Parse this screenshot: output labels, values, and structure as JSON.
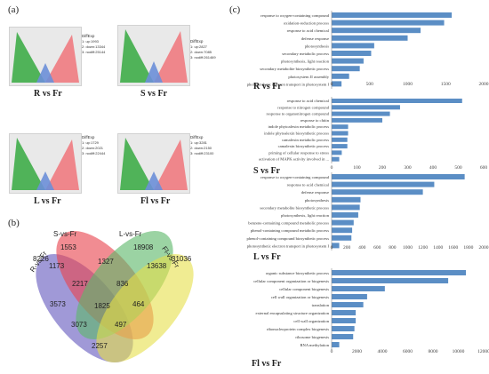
{
  "panels": {
    "a": "(a)",
    "b": "(b)",
    "c": "(c)"
  },
  "volcano": [
    {
      "title": "R vs Fr",
      "legend_title": "DiffExp",
      "legend": [
        "1: up:1993",
        "2: down:13344",
        "3: nodiff:25144"
      ]
    },
    {
      "title": "S vs Fr",
      "legend_title": "DiffExp",
      "legend": [
        "1: up:2827",
        "2: down:7085",
        "3: nodiff:261469"
      ]
    },
    {
      "title": "L vs Fr",
      "legend_title": "DiffExp",
      "legend": [
        "1: up:1729",
        "2: down:2021",
        "3: nodiff:22444"
      ]
    },
    {
      "title": "Fl vs Fr",
      "legend_title": "DiffExp",
      "legend": [
        "1: up:3281",
        "2: down:2150",
        "3: nodiff:23100"
      ]
    }
  ],
  "venn": {
    "sets": [
      "R-vs-Fr",
      "S-vs-Fr",
      "L-vs-Fr",
      "Fl-vs-Fr"
    ],
    "colors": [
      "#7b72c8",
      "#e8454f",
      "#5db86a",
      "#e6e04a"
    ],
    "counts": {
      "R_only": "8226",
      "S_only": "1553",
      "L_only": "18908",
      "Fl_only": "31036",
      "RS": "1173",
      "SL": "1327",
      "LF": "13638",
      "RF": "2257",
      "RSL": "2217",
      "SLF": "836",
      "RSF": "3573",
      "RLF": "497",
      "RL": "3073",
      "SF": "464",
      "all": "1825"
    }
  },
  "chart_data": [
    {
      "type": "bar",
      "orientation": "horizontal",
      "title": "R vs Fr",
      "categories": [
        "response to oxygen-containing compound",
        "oxidation-reduction process",
        "response to acid chemical",
        "defense response",
        "photosynthesis",
        "secondary metabolic process",
        "photosynthesis, light reaction",
        "secondary metabolite biosynthetic process",
        "photosystem II assembly",
        "photosynthetic electron transport in photosystem I"
      ],
      "values": [
        1580,
        1480,
        1170,
        1000,
        560,
        520,
        420,
        370,
        230,
        130
      ],
      "xlim": [
        0,
        2000
      ],
      "xticks": [
        "0",
        "500",
        "1000",
        "1500",
        "2000"
      ]
    },
    {
      "type": "bar",
      "orientation": "horizontal",
      "title": "S vs Fr",
      "categories": [
        "response to acid chemical",
        "response to nitrogen compound",
        "response to organonitrogen compound",
        "response to chitin",
        "indole phytoalexin metabolic process",
        "indole phytoalexin biosynthetic process",
        "camalexin metabolic process",
        "camalexin biosynthetic process",
        "priming of cellular response to stress",
        "activation of MAPK activity involved in ..."
      ],
      "values": [
        515,
        270,
        230,
        200,
        65,
        65,
        62,
        62,
        40,
        30
      ],
      "xlim": [
        0,
        600
      ],
      "xticks": [
        "0",
        "100",
        "200",
        "300",
        "400",
        "500",
        "600"
      ]
    },
    {
      "type": "bar",
      "orientation": "horizontal",
      "title": "L vs Fr",
      "categories": [
        "response to oxygen-containing compound",
        "response to acid chemical",
        "defense response",
        "photosynthesis",
        "secondary metabolite biosynthetic process",
        "photosynthesis, light reaction",
        "benzene-containing compound metabolic process",
        "phenol-containing compound metabolic process",
        "phenol-containing compound biosynthetic process",
        "photosynthetic electron transport in photosystem I"
      ],
      "values": [
        1750,
        1350,
        1200,
        380,
        370,
        350,
        290,
        270,
        260,
        100
      ],
      "xlim": [
        0,
        2000
      ],
      "xticks": [
        "0",
        "200",
        "400",
        "600",
        "800",
        "1000",
        "1200",
        "1400",
        "1600",
        "1800",
        "2000"
      ]
    },
    {
      "type": "bar",
      "orientation": "horizontal",
      "title": "Fl vs Fr",
      "categories": [
        "organic substance biosynthetic process",
        "cellular component organization or biogenesis",
        "cellular component biogenesis",
        "cell wall organization or biogenesis",
        "translation",
        "external encapsulating structure organization",
        "cell wall organization",
        "ribonucleoprotein complex biogenesis",
        "ribosome biogenesis",
        "RNA methylation"
      ],
      "values": [
        10600,
        9200,
        4200,
        2800,
        2500,
        1900,
        1900,
        1800,
        1700,
        600
      ],
      "xlim": [
        0,
        12000
      ],
      "xticks": [
        "0",
        "2000",
        "4000",
        "6000",
        "8000",
        "10000",
        "12000"
      ]
    }
  ]
}
